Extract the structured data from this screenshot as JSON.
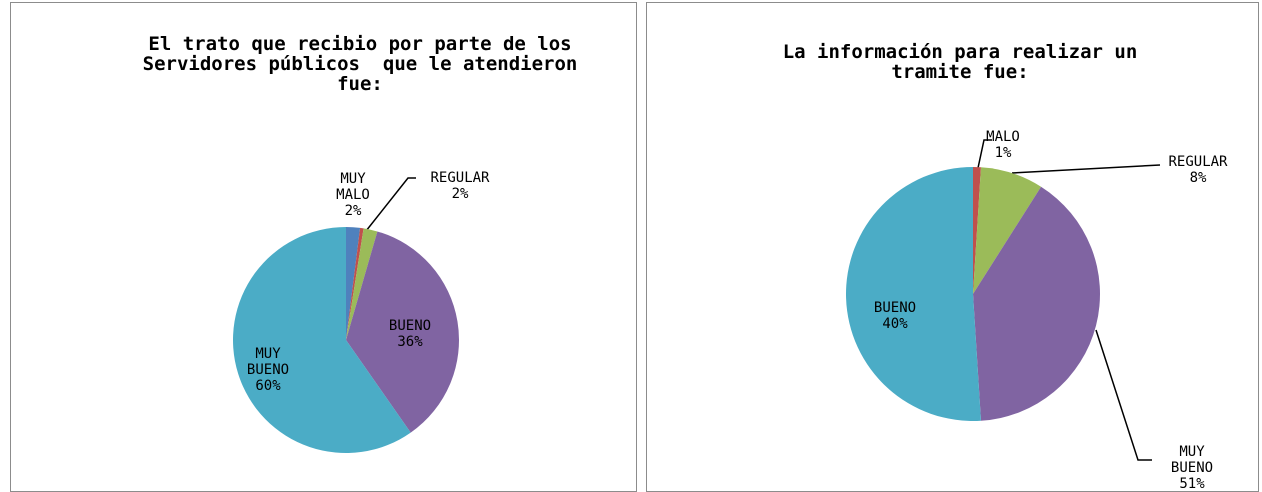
{
  "chart_data": [
    {
      "type": "pie",
      "title": "El trato que recibio por parte de los Servidores públicos  que le atendieron fue:",
      "categories": [
        "MUY MALO",
        null,
        "REGULAR",
        "BUENO",
        "MUY BUENO"
      ],
      "values": [
        2,
        0.5,
        2,
        36,
        60
      ],
      "value_labels": [
        "2%",
        null,
        "2%",
        "36%",
        "60%"
      ],
      "colors": [
        "#4f81bd",
        "#c0504d",
        "#9bbb59",
        "#8064a2",
        "#4bacc6"
      ]
    },
    {
      "type": "pie",
      "title": "La información para realizar un tramite fue:",
      "categories": [
        "MALO",
        "REGULAR",
        "BUENO",
        "MUY BUENO"
      ],
      "values": [
        1,
        8,
        40,
        51
      ],
      "value_labels": [
        "1%",
        "8%",
        "40%",
        "51%"
      ],
      "colors": [
        "#c0504d",
        "#9bbb59",
        "#8064a2",
        "#4bacc6"
      ]
    }
  ]
}
